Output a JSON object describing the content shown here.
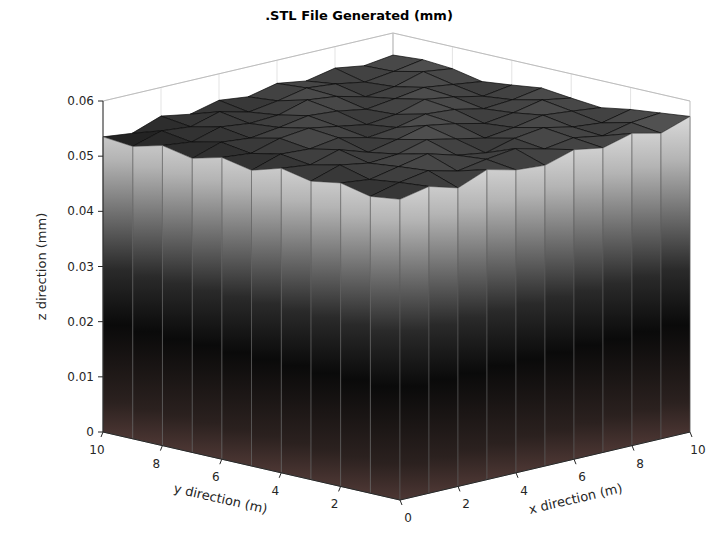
{
  "chart_data": {
    "type": "surface",
    "title": ".STL File Generated (mm)",
    "xlabel": "x direction (m)",
    "ylabel": "y direction (m)",
    "zlabel": "z direction (mm)",
    "x": [
      0,
      1,
      2,
      3,
      4,
      5,
      6,
      7,
      8,
      9,
      10
    ],
    "y": [
      0,
      1,
      2,
      3,
      4,
      5,
      6,
      7,
      8,
      9,
      10
    ],
    "z": [
      [
        0.0545,
        0.0556,
        0.0541,
        0.0562,
        0.0549,
        0.0545,
        0.0561,
        0.0552,
        0.0566,
        0.0554,
        0.0572
      ],
      [
        0.0538,
        0.0551,
        0.056,
        0.0547,
        0.0556,
        0.0563,
        0.055,
        0.0558,
        0.0549,
        0.0561,
        0.0566
      ],
      [
        0.055,
        0.0544,
        0.0555,
        0.0566,
        0.0551,
        0.0543,
        0.0557,
        0.0564,
        0.0553,
        0.0548,
        0.056
      ],
      [
        0.0541,
        0.0558,
        0.0549,
        0.0553,
        0.0567,
        0.0556,
        0.0545,
        0.0552,
        0.0562,
        0.0557,
        0.0551
      ],
      [
        0.0552,
        0.0546,
        0.0561,
        0.0544,
        0.0555,
        0.0568,
        0.0559,
        0.0547,
        0.0554,
        0.0565,
        0.0556
      ],
      [
        0.0536,
        0.0553,
        0.055,
        0.0558,
        0.0546,
        0.0552,
        0.0564,
        0.056,
        0.0549,
        0.0553,
        0.0562
      ],
      [
        0.0547,
        0.0542,
        0.0557,
        0.0563,
        0.0554,
        0.0545,
        0.0551,
        0.0566,
        0.0558,
        0.0547,
        0.0555
      ],
      [
        0.0533,
        0.055,
        0.0545,
        0.0552,
        0.0561,
        0.0557,
        0.0548,
        0.0555,
        0.0563,
        0.0556,
        0.0549
      ],
      [
        0.0544,
        0.0538,
        0.0553,
        0.0547,
        0.055,
        0.0565,
        0.0559,
        0.0546,
        0.0552,
        0.0567,
        0.056
      ],
      [
        0.053,
        0.0546,
        0.0541,
        0.0556,
        0.0543,
        0.0551,
        0.0562,
        0.0557,
        0.0548,
        0.0555,
        0.0564
      ],
      [
        0.0535,
        0.0529,
        0.0548,
        0.0539,
        0.0552,
        0.0546,
        0.0558,
        0.055,
        0.0561,
        0.0553,
        0.056
      ]
    ],
    "xlim": [
      0,
      10
    ],
    "ylim": [
      0,
      10
    ],
    "zlim": [
      0,
      0.06
    ],
    "xticks": [
      0,
      2,
      4,
      6,
      8,
      10
    ],
    "yticks": [
      2,
      4,
      6,
      8,
      10
    ],
    "zticks": [
      0,
      0.01,
      0.02,
      0.03,
      0.04,
      0.05,
      0.06
    ],
    "grid": true
  }
}
